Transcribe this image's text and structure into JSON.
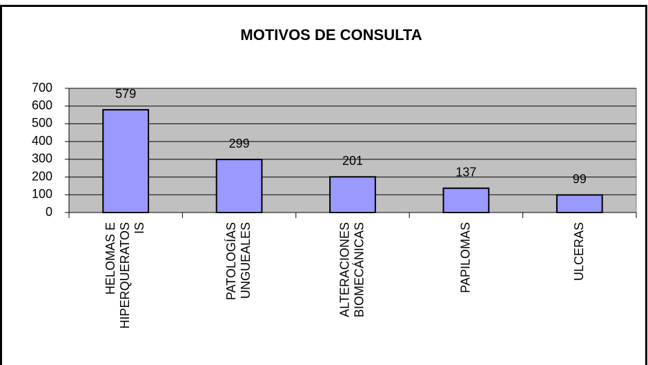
{
  "chart_data": {
    "type": "bar",
    "title": "MOTIVOS DE CONSULTA",
    "categories": [
      "HELOMAS E\nHIPERQUERATOS\nIS",
      "PATOLOGÍAS\nUNGUEALES",
      "ALTERACIONES\nBIOMECÁNICAS",
      "PAPILOMAS",
      "ULCERAS"
    ],
    "values": [
      579,
      299,
      201,
      137,
      99
    ],
    "color": "#9999ff",
    "ylim": [
      0,
      700
    ],
    "yticks": [
      0,
      100,
      200,
      300,
      400,
      500,
      600,
      700
    ],
    "grid": true
  }
}
